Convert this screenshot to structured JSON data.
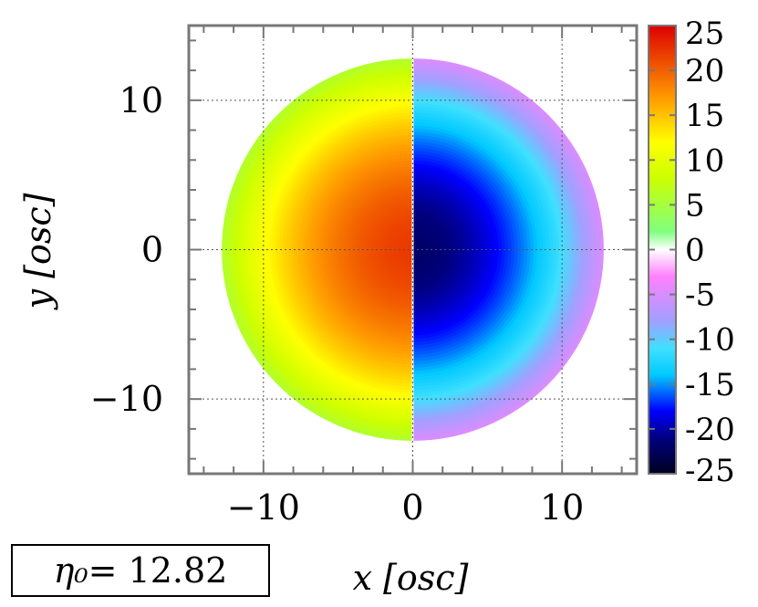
{
  "chart_data": {
    "type": "heatmap",
    "xlabel": "x [osc]",
    "ylabel": "y [osc]",
    "xlim": [
      -15,
      15
    ],
    "ylim": [
      -15,
      15
    ],
    "xticks": [
      -10,
      0,
      10
    ],
    "yticks": [
      -10,
      0,
      10
    ],
    "xtick_labels": [
      "−10",
      "0",
      "10"
    ],
    "ytick_labels": [
      "−10",
      "0",
      "10"
    ],
    "grid": true,
    "colorbar": {
      "range": [
        -25,
        25
      ],
      "ticks": [
        25,
        20,
        15,
        10,
        5,
        0,
        -5,
        -10,
        -15,
        -20,
        -25
      ],
      "tick_labels": [
        "25",
        "20",
        "15",
        "10",
        "5",
        "0",
        "-5",
        "-10",
        "-15",
        "-20",
        "-25"
      ],
      "colormap": [
        {
          "value": -25,
          "color": "#000020"
        },
        {
          "value": -21,
          "color": "#000080"
        },
        {
          "value": -18,
          "color": "#0000ff"
        },
        {
          "value": -14,
          "color": "#00c8ff"
        },
        {
          "value": -11,
          "color": "#40e0ff"
        },
        {
          "value": -8,
          "color": "#a0a0ff"
        },
        {
          "value": -3,
          "color": "#ff80ff"
        },
        {
          "value": 0,
          "color": "#ffffff"
        },
        {
          "value": 2,
          "color": "#80ff80"
        },
        {
          "value": 8,
          "color": "#ccff00"
        },
        {
          "value": 12,
          "color": "#ffff00"
        },
        {
          "value": 17,
          "color": "#ff9900"
        },
        {
          "value": 25,
          "color": "#dd0000"
        }
      ]
    },
    "field": {
      "description_shape": "disk",
      "radius": 12.8,
      "left_half_peak": 22,
      "right_half_peak": -22,
      "edge_left_value": 6,
      "edge_right_value": -5
    }
  },
  "annotation": {
    "symbol": "η₀",
    "text": " = 12.82"
  }
}
